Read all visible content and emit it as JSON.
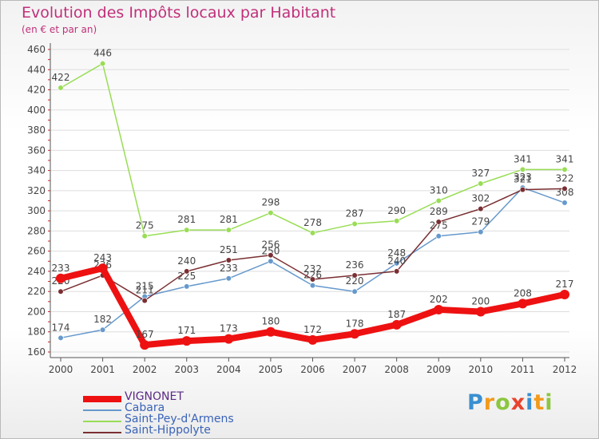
{
  "chart_data": {
    "type": "line",
    "title": "Evolution des Impôts locaux par Habitant",
    "subtitle": "(en € et par an)",
    "xlabel": "",
    "ylabel": "",
    "categories": [
      "2000",
      "2001",
      "2002",
      "2003",
      "2004",
      "2005",
      "2006",
      "2007",
      "2008",
      "2009",
      "2010",
      "2011",
      "2012"
    ],
    "ylim": [
      160,
      460
    ],
    "yticks": [
      160,
      180,
      200,
      220,
      240,
      260,
      280,
      300,
      320,
      340,
      360,
      380,
      400,
      420,
      440,
      460
    ],
    "grid": "horizontal",
    "legend_position": "bottom-left",
    "series": [
      {
        "name": "VIGNONET",
        "color": "#ee1111",
        "values": [
          233,
          243,
          167,
          171,
          173,
          180,
          172,
          178,
          187,
          202,
          200,
          208,
          217
        ]
      },
      {
        "name": "Cabara",
        "color": "#6699cc",
        "values": [
          174,
          182,
          215,
          225,
          233,
          250,
          226,
          220,
          248,
          275,
          279,
          323,
          308
        ]
      },
      {
        "name": "Saint-Pey-d'Armens",
        "color": "#99dd55",
        "values": [
          422,
          446,
          275,
          281,
          281,
          298,
          278,
          287,
          290,
          310,
          327,
          341,
          341
        ]
      },
      {
        "name": "Saint-Hippolyte",
        "color": "#7a2f32",
        "values": [
          220,
          236,
          211,
          240,
          251,
          256,
          232,
          236,
          240,
          289,
          302,
          321,
          322
        ]
      }
    ]
  },
  "logo": {
    "letters": [
      "P",
      "r",
      "o",
      "x",
      "i",
      "t",
      "i"
    ],
    "colors": [
      "#3a8fd0",
      "#f39a1c",
      "#8cc63f",
      "#e8442e",
      "#3a8fd0",
      "#f39a1c",
      "#8cc63f"
    ]
  }
}
